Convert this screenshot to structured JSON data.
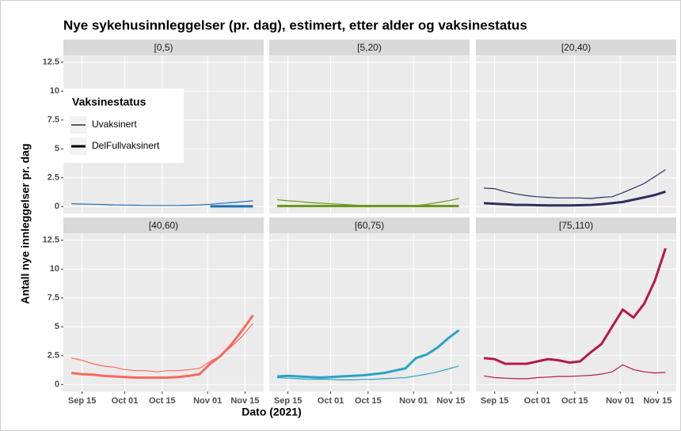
{
  "title": "Nye sykehusinnleggelser (pr. dag), estimert, etter alder og vaksinestatus",
  "x_label": "Dato (2021)",
  "y_label": "Antall nye innleggelser pr. dag",
  "legend_title": "Vaksinestatus",
  "chart_data": [
    {
      "type": "line",
      "title": "[0,5)",
      "x": [
        "2021-09-11",
        "2021-09-15",
        "2021-09-19",
        "2021-09-23",
        "2021-09-27",
        "2021-10-01",
        "2021-10-05",
        "2021-10-09",
        "2021-10-13",
        "2021-10-17",
        "2021-10-21",
        "2021-10-25",
        "2021-10-29",
        "2021-11-02",
        "2021-11-06",
        "2021-11-10",
        "2021-11-14",
        "2021-11-18"
      ],
      "xlim": [
        "2021-09-08",
        "2021-11-22"
      ],
      "xticks": [
        {
          "value": "2021-09-15",
          "label": "Sep 15"
        },
        {
          "value": "2021-10-01",
          "label": "Oct 01"
        },
        {
          "value": "2021-10-15",
          "label": "Oct 15"
        },
        {
          "value": "2021-11-01",
          "label": "Nov 01"
        },
        {
          "value": "2021-11-15",
          "label": "Nov 15"
        }
      ],
      "ylim": [
        -0.6,
        13.1
      ],
      "yticks": [
        0,
        2.5,
        5,
        7.5,
        10,
        12.5
      ],
      "series": [
        {
          "name": "Uvaksinert",
          "color": "#2171b5",
          "values": [
            0.25,
            0.22,
            0.2,
            0.18,
            0.15,
            0.13,
            0.12,
            0.1,
            0.1,
            0.1,
            0.1,
            0.12,
            0.15,
            0.2,
            0.28,
            0.35,
            0.42,
            0.5
          ]
        },
        {
          "name": "DelFullvaksinert",
          "color": "#2171b5",
          "values": [
            null,
            null,
            null,
            null,
            null,
            null,
            null,
            null,
            null,
            null,
            null,
            null,
            null,
            0.02,
            0.02,
            0.02,
            0.02,
            0.02
          ]
        }
      ]
    },
    {
      "type": "line",
      "title": "[5,20)",
      "x": [
        "2021-09-11",
        "2021-09-15",
        "2021-09-19",
        "2021-09-23",
        "2021-09-27",
        "2021-10-01",
        "2021-10-05",
        "2021-10-09",
        "2021-10-13",
        "2021-10-17",
        "2021-10-21",
        "2021-10-25",
        "2021-10-29",
        "2021-11-02",
        "2021-11-06",
        "2021-11-10",
        "2021-11-14",
        "2021-11-18"
      ],
      "xlim": [
        "2021-09-08",
        "2021-11-22"
      ],
      "xticks": [
        {
          "value": "2021-09-15",
          "label": "Sep 15"
        },
        {
          "value": "2021-10-01",
          "label": "Oct 01"
        },
        {
          "value": "2021-10-15",
          "label": "Oct 15"
        },
        {
          "value": "2021-11-01",
          "label": "Nov 01"
        },
        {
          "value": "2021-11-15",
          "label": "Nov 15"
        }
      ],
      "ylim": [
        -0.6,
        13.1
      ],
      "yticks": [
        0,
        2.5,
        5,
        7.5,
        10,
        12.5
      ],
      "series": [
        {
          "name": "Uvaksinert",
          "color": "#6a9a1f",
          "values": [
            0.6,
            0.5,
            0.45,
            0.35,
            0.3,
            0.25,
            0.2,
            0.15,
            0.1,
            0.08,
            0.05,
            0.05,
            0.08,
            0.1,
            0.2,
            0.35,
            0.5,
            0.7
          ]
        },
        {
          "name": "DelFullvaksinert",
          "color": "#6a9a1f",
          "values": [
            0.05,
            0.05,
            0.05,
            0.05,
            0.05,
            0.05,
            0.05,
            0.05,
            0.05,
            0.05,
            0.05,
            0.05,
            0.05,
            0.05,
            0.05,
            0.05,
            0.05,
            0.05
          ]
        }
      ]
    },
    {
      "type": "line",
      "title": "[20,40)",
      "x": [
        "2021-09-11",
        "2021-09-15",
        "2021-09-19",
        "2021-09-23",
        "2021-09-27",
        "2021-10-01",
        "2021-10-05",
        "2021-10-09",
        "2021-10-13",
        "2021-10-17",
        "2021-10-21",
        "2021-10-25",
        "2021-10-29",
        "2021-11-02",
        "2021-11-06",
        "2021-11-10",
        "2021-11-14",
        "2021-11-18"
      ],
      "xlim": [
        "2021-09-08",
        "2021-11-22"
      ],
      "xticks": [
        {
          "value": "2021-09-15",
          "label": "Sep 15"
        },
        {
          "value": "2021-10-01",
          "label": "Oct 01"
        },
        {
          "value": "2021-10-15",
          "label": "Oct 15"
        },
        {
          "value": "2021-11-01",
          "label": "Nov 01"
        },
        {
          "value": "2021-11-15",
          "label": "Nov 15"
        }
      ],
      "ylim": [
        -0.6,
        13.1
      ],
      "yticks": [
        0,
        2.5,
        5,
        7.5,
        10,
        12.5
      ],
      "series": [
        {
          "name": "Uvaksinert",
          "color": "#2e2f5e",
          "values": [
            1.6,
            1.55,
            1.3,
            1.1,
            0.95,
            0.85,
            0.8,
            0.75,
            0.75,
            0.75,
            0.7,
            0.8,
            0.85,
            1.2,
            1.6,
            2.0,
            2.6,
            3.2
          ]
        },
        {
          "name": "DelFullvaksinert",
          "color": "#2e2f5e",
          "values": [
            0.3,
            0.25,
            0.2,
            0.15,
            0.15,
            0.12,
            0.1,
            0.1,
            0.1,
            0.12,
            0.15,
            0.2,
            0.3,
            0.4,
            0.6,
            0.8,
            1.0,
            1.3
          ]
        }
      ]
    },
    {
      "type": "line",
      "title": "[40,60)",
      "x": [
        "2021-09-11",
        "2021-09-15",
        "2021-09-19",
        "2021-09-23",
        "2021-09-27",
        "2021-10-01",
        "2021-10-05",
        "2021-10-09",
        "2021-10-13",
        "2021-10-17",
        "2021-10-21",
        "2021-10-25",
        "2021-10-29",
        "2021-11-02",
        "2021-11-06",
        "2021-11-10",
        "2021-11-14",
        "2021-11-18"
      ],
      "xlim": [
        "2021-09-08",
        "2021-11-22"
      ],
      "xticks": [
        {
          "value": "2021-09-15",
          "label": "Sep 15"
        },
        {
          "value": "2021-10-01",
          "label": "Oct 01"
        },
        {
          "value": "2021-10-15",
          "label": "Oct 15"
        },
        {
          "value": "2021-11-01",
          "label": "Nov 01"
        },
        {
          "value": "2021-11-15",
          "label": "Nov 15"
        }
      ],
      "ylim": [
        -0.6,
        13.1
      ],
      "yticks": [
        0,
        2.5,
        5,
        7.5,
        10,
        12.5
      ],
      "series": [
        {
          "name": "Uvaksinert",
          "color": "#f8695f",
          "values": [
            2.3,
            2.1,
            1.8,
            1.6,
            1.5,
            1.3,
            1.2,
            1.2,
            1.1,
            1.2,
            1.2,
            1.3,
            1.4,
            2.0,
            2.5,
            3.3,
            4.2,
            5.3
          ]
        },
        {
          "name": "DelFullvaksinert",
          "color": "#f8695f",
          "values": [
            1.0,
            0.9,
            0.85,
            0.75,
            0.7,
            0.65,
            0.6,
            0.6,
            0.6,
            0.6,
            0.65,
            0.75,
            0.9,
            1.8,
            2.5,
            3.5,
            4.7,
            6.0
          ]
        }
      ]
    },
    {
      "type": "line",
      "title": "[60,75)",
      "x": [
        "2021-09-11",
        "2021-09-15",
        "2021-09-19",
        "2021-09-23",
        "2021-09-27",
        "2021-10-01",
        "2021-10-05",
        "2021-10-09",
        "2021-10-13",
        "2021-10-17",
        "2021-10-21",
        "2021-10-25",
        "2021-10-29",
        "2021-11-02",
        "2021-11-06",
        "2021-11-10",
        "2021-11-14",
        "2021-11-18"
      ],
      "xlim": [
        "2021-09-08",
        "2021-11-22"
      ],
      "xticks": [
        {
          "value": "2021-09-15",
          "label": "Sep 15"
        },
        {
          "value": "2021-10-01",
          "label": "Oct 01"
        },
        {
          "value": "2021-10-15",
          "label": "Oct 15"
        },
        {
          "value": "2021-11-01",
          "label": "Nov 01"
        },
        {
          "value": "2021-11-15",
          "label": "Nov 15"
        }
      ],
      "ylim": [
        -0.6,
        13.1
      ],
      "yticks": [
        0,
        2.5,
        5,
        7.5,
        10,
        12.5
      ],
      "series": [
        {
          "name": "Uvaksinert",
          "color": "#2ba3c4",
          "values": [
            0.6,
            0.55,
            0.5,
            0.45,
            0.45,
            0.45,
            0.4,
            0.4,
            0.45,
            0.45,
            0.5,
            0.55,
            0.6,
            0.75,
            0.9,
            1.1,
            1.35,
            1.6
          ]
        },
        {
          "name": "DelFullvaksinert",
          "color": "#2ba3c4",
          "values": [
            0.7,
            0.75,
            0.7,
            0.65,
            0.6,
            0.65,
            0.7,
            0.75,
            0.8,
            0.9,
            1.0,
            1.2,
            1.4,
            2.3,
            2.6,
            3.2,
            4.0,
            4.7
          ]
        }
      ]
    },
    {
      "type": "line",
      "title": "[75,110)",
      "x": [
        "2021-09-11",
        "2021-09-15",
        "2021-09-19",
        "2021-09-23",
        "2021-09-27",
        "2021-10-01",
        "2021-10-05",
        "2021-10-09",
        "2021-10-13",
        "2021-10-17",
        "2021-10-21",
        "2021-10-25",
        "2021-10-29",
        "2021-11-02",
        "2021-11-06",
        "2021-11-10",
        "2021-11-14",
        "2021-11-18"
      ],
      "xlim": [
        "2021-09-08",
        "2021-11-22"
      ],
      "xticks": [
        {
          "value": "2021-09-15",
          "label": "Sep 15"
        },
        {
          "value": "2021-10-01",
          "label": "Oct 01"
        },
        {
          "value": "2021-10-15",
          "label": "Oct 15"
        },
        {
          "value": "2021-11-01",
          "label": "Nov 01"
        },
        {
          "value": "2021-11-15",
          "label": "Nov 15"
        }
      ],
      "ylim": [
        -0.6,
        13.1
      ],
      "yticks": [
        0,
        2.5,
        5,
        7.5,
        10,
        12.5
      ],
      "series": [
        {
          "name": "Uvaksinert",
          "color": "#b5194a",
          "values": [
            0.75,
            0.6,
            0.55,
            0.5,
            0.5,
            0.6,
            0.65,
            0.7,
            0.7,
            0.75,
            0.8,
            0.9,
            1.1,
            1.7,
            1.3,
            1.1,
            1.0,
            1.05
          ]
        },
        {
          "name": "DelFullvaksinert",
          "color": "#b5194a",
          "values": [
            2.3,
            2.2,
            1.8,
            1.8,
            1.8,
            2.0,
            2.2,
            2.1,
            1.9,
            2.0,
            2.8,
            3.5,
            5.0,
            6.5,
            5.8,
            7.0,
            9.0,
            11.8
          ]
        }
      ]
    }
  ]
}
